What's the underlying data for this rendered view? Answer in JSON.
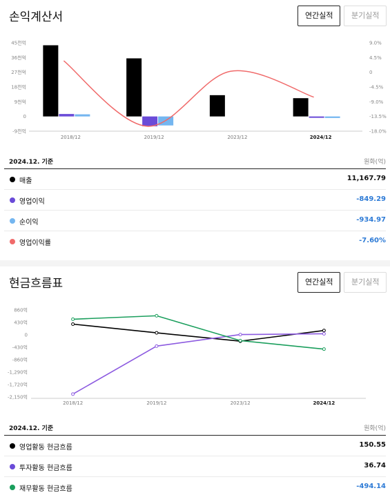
{
  "income": {
    "title": "손익계산서",
    "toggle": {
      "annual": "연간실적",
      "quarter": "분기실적"
    },
    "basis": "2024.12. 기준",
    "unit": "원화(억)",
    "rows": [
      {
        "label": "매출",
        "value": "11,167.79",
        "color": "#000000",
        "negative": false
      },
      {
        "label": "영업이익",
        "value": "-849.29",
        "color": "#6a4bd8",
        "negative": true
      },
      {
        "label": "순이익",
        "value": "-934.97",
        "color": "#74b6f0",
        "negative": true
      },
      {
        "label": "영업이익률",
        "value": "-7.60%",
        "color": "#f06a6a",
        "negative": true
      }
    ]
  },
  "cash": {
    "title": "현금흐름표",
    "toggle": {
      "annual": "연간실적",
      "quarter": "분기실적"
    },
    "basis": "2024.12. 기준",
    "unit": "원화(억)",
    "rows": [
      {
        "label": "영업활동 현금흐름",
        "value": "150.55",
        "color": "#000000",
        "negative": false
      },
      {
        "label": "투자활동 현금흐름",
        "value": "36.74",
        "color": "#6a4bd8",
        "negative": false
      },
      {
        "label": "재무활동 현금흐름",
        "value": "-494.14",
        "color": "#1a9e5c",
        "negative": true
      }
    ]
  },
  "chart_data": [
    {
      "type": "bar",
      "categories": [
        "2018/12",
        "2019/12",
        "2023/12",
        "2024/12"
      ],
      "left_axis_ticks": [
        "45천억",
        "36천억",
        "27천억",
        "18천억",
        "9천억",
        "0",
        "-9천억"
      ],
      "left_axis_values": [
        45000,
        36000,
        27000,
        18000,
        9000,
        0,
        -9000
      ],
      "right_axis_ticks": [
        "9.0%",
        "4.5%",
        "0",
        "-4.5%",
        "-9.0%",
        "-13.5%",
        "-18.0%"
      ],
      "right_axis_values": [
        9.0,
        4.5,
        0,
        -4.5,
        -9.0,
        -13.5,
        -18.0
      ],
      "ylim": [
        -9000,
        45000
      ],
      "y2lim": [
        -18.0,
        9.0
      ],
      "series": [
        {
          "name": "매출",
          "kind": "bar",
          "color": "#000000",
          "values": [
            43500,
            35500,
            13000,
            11167.79
          ]
        },
        {
          "name": "영업이익",
          "kind": "bar",
          "color": "#6a4bd8",
          "values": [
            1500,
            -6000,
            0,
            -849.29
          ]
        },
        {
          "name": "순이익",
          "kind": "bar",
          "color": "#74b6f0",
          "values": [
            1300,
            -5500,
            0,
            -934.97
          ]
        },
        {
          "name": "영업이익률",
          "kind": "line",
          "axis": "right",
          "color": "#f06a6a",
          "values": [
            3.5,
            -16.5,
            0.3,
            -7.6
          ]
        }
      ],
      "bold_category": "2024/12"
    },
    {
      "type": "line",
      "categories": [
        "2018/12",
        "2019/12",
        "2023/12",
        "2024/12"
      ],
      "y_axis_ticks": [
        "860억",
        "430억",
        "0",
        "-430억",
        "-860억",
        "-1,290억",
        "-1,720억",
        "-2,150억"
      ],
      "y_axis_values": [
        860,
        430,
        0,
        -430,
        -860,
        -1290,
        -1720,
        -2150
      ],
      "ylim": [
        -2150,
        860
      ],
      "series": [
        {
          "name": "영업활동 현금흐름",
          "color": "#000000",
          "values": [
            370,
            70,
            -220,
            150.55
          ]
        },
        {
          "name": "투자활동 현금흐름",
          "color": "#8c5ae0",
          "values": [
            -2050,
            -390,
            10,
            36.74
          ]
        },
        {
          "name": "재무활동 현금흐름",
          "color": "#1a9e5c",
          "values": [
            540,
            660,
            -200,
            -494.14
          ]
        }
      ],
      "bold_category": "2024/12"
    }
  ]
}
